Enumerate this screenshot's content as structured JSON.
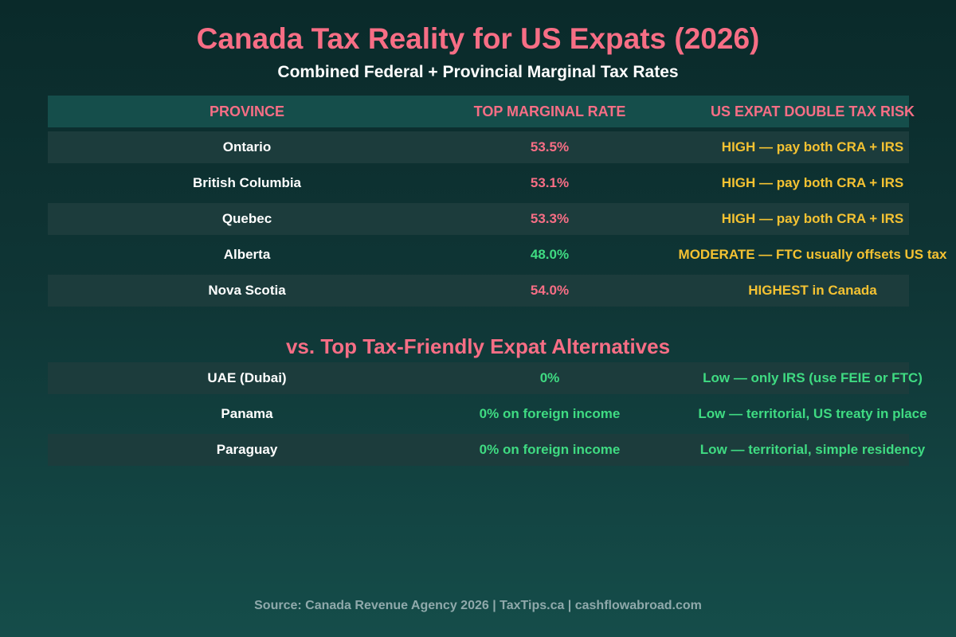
{
  "title": "Canada Tax Reality for US Expats (2026)",
  "subtitle": "Combined Federal + Provincial Marginal Tax Rates",
  "section2_title": "vs. Top Tax-Friendly Expat Alternatives",
  "source": "Source: Canada Revenue Agency 2026 | TaxTips.ca | cashflowabroad.com",
  "colors": {
    "accent": "#f76e85",
    "high": "#f4c232",
    "low": "#3fdb82",
    "background": "#0f3535"
  },
  "chart_data": {
    "type": "table",
    "columns": [
      "PROVINCE",
      "TOP MARGINAL RATE",
      "US EXPAT DOUBLE TAX RISK"
    ],
    "rows": [
      [
        "Ontario",
        "53.5%",
        "HIGH — pay both CRA + IRS"
      ],
      [
        "British Columbia",
        "53.1%",
        "HIGH — pay both CRA + IRS"
      ],
      [
        "Quebec",
        "53.3%",
        "HIGH — pay both CRA + IRS"
      ],
      [
        "Alberta",
        "48.0%",
        "MODERATE — FTC usually offsets US tax"
      ],
      [
        "Nova Scotia",
        "54.0%",
        "HIGHEST in Canada"
      ]
    ],
    "alternatives": [
      [
        "UAE (Dubai)",
        "0%",
        "Low — only IRS (use FEIE or FTC)"
      ],
      [
        "Panama",
        "0% on foreign income",
        "Low — territorial, US treaty in place"
      ],
      [
        "Paraguay",
        "0% on foreign income",
        "Low — territorial, simple residency"
      ]
    ]
  }
}
